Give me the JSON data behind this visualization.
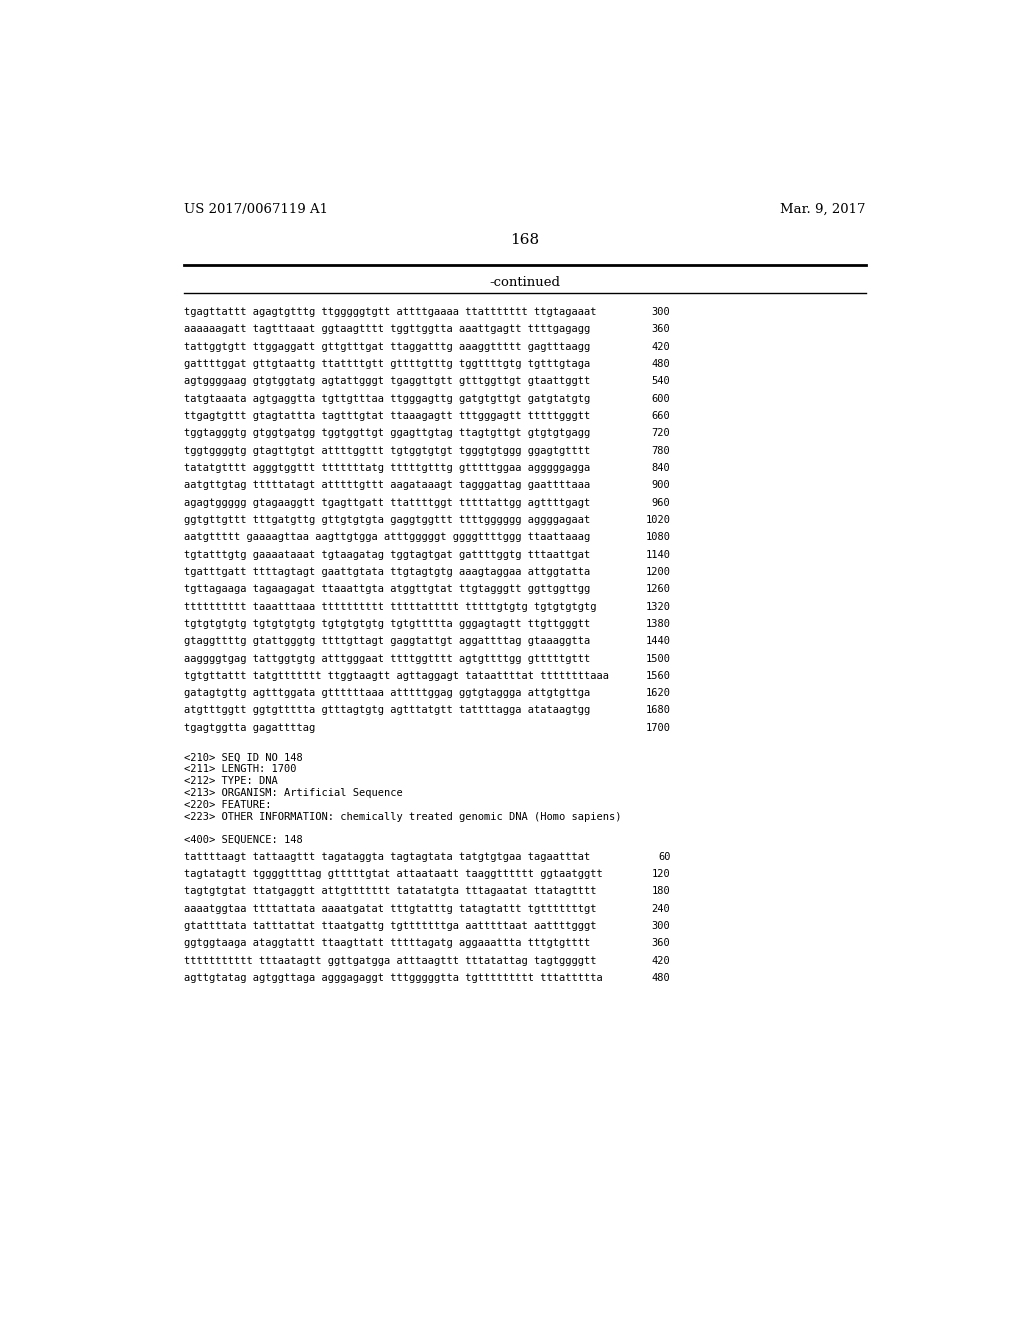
{
  "header_left": "US 2017/0067119 A1",
  "header_right": "Mar. 9, 2017",
  "page_number": "168",
  "continued_label": "-continued",
  "background_color": "#ffffff",
  "sequence_lines": [
    {
      "seq": "tgagttattt agagtgtttg ttgggggtgtt attttgaaaa ttattttttt ttgtagaaat",
      "num": "300"
    },
    {
      "seq": "aaaaaagatt tagtttaaat ggtaagtttt tggttggtta aaattgagtt ttttgagagg",
      "num": "360"
    },
    {
      "seq": "tattggtgtt ttggaggatt gttgtttgat ttaggatttg aaaggttttt gagtttaagg",
      "num": "420"
    },
    {
      "seq": "gattttggat gttgtaattg ttattttgtt gttttgtttg tggttttgtg tgtttgtaga",
      "num": "480"
    },
    {
      "seq": "agtggggaag gtgtggtatg agtattgggt tgaggttgtt gtttggttgt gtaattggtt",
      "num": "540"
    },
    {
      "seq": "tatgtaaata agtgaggtta tgttgtttaa ttgggagttg gatgtgttgt gatgtatgtg",
      "num": "600"
    },
    {
      "seq": "ttgagtgttt gtagtattta tagtttgtat ttaaagagtt tttgggagtt tttttgggtt",
      "num": "660"
    },
    {
      "seq": "tggtagggtg gtggtgatgg tggtggttgt ggagttgtag ttagtgttgt gtgtgtgagg",
      "num": "720"
    },
    {
      "seq": "tggtggggtg gtagttgtgt attttggttt tgtggtgtgt tgggtgtggg ggagtgtttt",
      "num": "780"
    },
    {
      "seq": "tatatgtttt agggtggttt tttttttatg tttttgtttg gtttttggaa agggggagga",
      "num": "840"
    },
    {
      "seq": "aatgttgtag tttttatagt atttttgttt aagataaagt tagggattag gaattttaaa",
      "num": "900"
    },
    {
      "seq": "agagtggggg gtagaaggtt tgagttgatt ttattttggt tttttattgg agttttgagt",
      "num": "960"
    },
    {
      "seq": "ggtgttgttt tttgatgttg gttgtgtgta gaggtggttt ttttgggggg aggggagaat",
      "num": "1020"
    },
    {
      "seq": "aatgttttt gaaaagttaa aagttgtgga atttgggggt ggggttttggg ttaattaaag",
      "num": "1080"
    },
    {
      "seq": "tgtatttgtg gaaaataaat tgtaagatag tggtagtgat gattttggtg tttaattgat",
      "num": "1140"
    },
    {
      "seq": "tgatttgatt ttttagtagt gaattgtata ttgtagtgtg aaagtaggaa attggtatta",
      "num": "1200"
    },
    {
      "seq": "tgttagaaga tagaagagat ttaaattgta atggttgtat ttgtagggtt ggttggttgg",
      "num": "1260"
    },
    {
      "seq": "tttttttttt taaatttaaa tttttttttt tttttattttt tttttgtgtg tgtgtgtgtg",
      "num": "1320"
    },
    {
      "seq": "tgtgtgtgtg tgtgtgtgtg tgtgtgtgtg tgtgttttta gggagtagtt ttgttgggtt",
      "num": "1380"
    },
    {
      "seq": "gtaggttttg gtattgggtg ttttgttagt gaggtattgt aggattttag gtaaaggtta",
      "num": "1440"
    },
    {
      "seq": "aaggggtgag tattggtgtg atttgggaat ttttggtttt agtgttttgg gtttttgttt",
      "num": "1500"
    },
    {
      "seq": "tgtgttattt tatgttttttt ttggtaagtt agttaggagt tataattttat ttttttttaaa",
      "num": "1560"
    },
    {
      "seq": "gatagtgttg agtttggata gttttttaaa atttttggag ggtgtaggga attgtgttga",
      "num": "1620"
    },
    {
      "seq": "atgtttggtt ggtgttttta gtttagtgtg agtttatgtt tattttagga atataagtgg",
      "num": "1680"
    },
    {
      "seq": "tgagtggtta gagattttag",
      "num": "1700"
    }
  ],
  "metadata_lines": [
    "<210> SEQ ID NO 148",
    "<211> LENGTH: 1700",
    "<212> TYPE: DNA",
    "<213> ORGANISM: Artificial Sequence",
    "<220> FEATURE:",
    "<223> OTHER INFORMATION: chemically treated genomic DNA (Homo sapiens)"
  ],
  "seq400_label": "<400> SEQUENCE: 148",
  "sequence_lines2": [
    {
      "seq": "tattttaagt tattaagttt tagataggta tagtagtata tatgtgtgaa tagaatttat",
      "num": "60"
    },
    {
      "seq": "tagtatagtt tggggttttag gtttttgtat attaataatt taaggtttttt ggtaatggtt",
      "num": "120"
    },
    {
      "seq": "tagtgtgtat ttatgaggtt attgttttttt tatatatgta tttagaatat ttatagtttt",
      "num": "180"
    },
    {
      "seq": "aaaatggtaa ttttattata aaaatgatat tttgtatttg tatagtattt tgtttttttgt",
      "num": "240"
    },
    {
      "seq": "gtattttata tatttattat ttaatgattg tgtttttttga aatttttaat aattttgggt",
      "num": "300"
    },
    {
      "seq": "ggtggtaaga ataggtattt ttaagttatt tttttagatg aggaaattta tttgtgtttt",
      "num": "360"
    },
    {
      "seq": "ttttttttttt tttaatagtt ggttgatgga atttaagttt tttatattag tagtggggtt",
      "num": "420"
    },
    {
      "seq": "agttgtatag agtggttaga agggagaggt tttgggggtta tgttttttttt tttattttta",
      "num": "480"
    }
  ]
}
